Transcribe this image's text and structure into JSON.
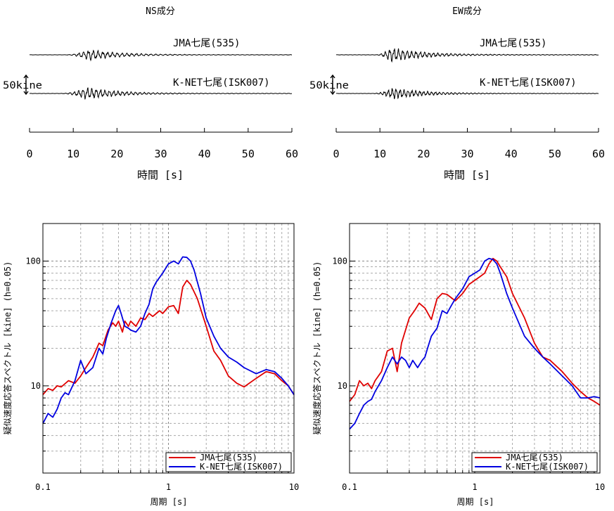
{
  "chart_data": [
    {
      "type": "line",
      "title": "NS成分",
      "xlabel": "時間 [s]",
      "xlim": [
        0,
        60
      ],
      "xticks": [
        0,
        10,
        20,
        30,
        40,
        50,
        60
      ],
      "scale_bar_label": "50kine",
      "traces": [
        {
          "name": "JMA七尾(535)",
          "color": "#000000",
          "onset": 8,
          "peak_time": 13.5,
          "peak_kine": 13,
          "period_s": 1.1
        },
        {
          "name": "K-NET七尾(ISK007)",
          "color": "#000000",
          "onset": 7,
          "peak_time": 13,
          "peak_kine": 15,
          "period_s": 1.0
        }
      ]
    },
    {
      "type": "line",
      "title": "EW成分",
      "xlabel": "時間 [s]",
      "xlim": [
        0,
        60
      ],
      "xticks": [
        0,
        10,
        20,
        30,
        40,
        50,
        60
      ],
      "scale_bar_label": "50kine",
      "traces": [
        {
          "name": "JMA七尾(535)",
          "color": "#000000",
          "onset": 9,
          "peak_time": 12.5,
          "peak_kine": 18,
          "period_s": 1.0
        },
        {
          "name": "K-NET七尾(ISK007)",
          "color": "#000000",
          "onset": 8,
          "peak_time": 13,
          "peak_kine": 14,
          "period_s": 0.9
        }
      ]
    },
    {
      "type": "line",
      "xlabel": "周期 [s]",
      "ylabel": "疑似速度応答スペクトル [kine] (h=0.05)",
      "xscale": "log",
      "yscale": "log",
      "xlim": [
        0.1,
        10
      ],
      "ylim": [
        2,
        200
      ],
      "xticks": [
        0.1,
        1,
        10
      ],
      "yticks": [
        10,
        100
      ],
      "legend": "bottom-right",
      "series": [
        {
          "name": "JMA七尾(535)",
          "color": "#e00000",
          "x": [
            0.1,
            0.11,
            0.12,
            0.13,
            0.14,
            0.16,
            0.18,
            0.2,
            0.22,
            0.25,
            0.28,
            0.3,
            0.33,
            0.36,
            0.38,
            0.4,
            0.43,
            0.45,
            0.48,
            0.5,
            0.55,
            0.6,
            0.65,
            0.7,
            0.75,
            0.8,
            0.85,
            0.9,
            1.0,
            1.1,
            1.2,
            1.3,
            1.4,
            1.5,
            1.7,
            2.0,
            2.3,
            2.6,
            3.0,
            3.5,
            4.0,
            5.0,
            6.0,
            7.0,
            8.0,
            9.0,
            10.0
          ],
          "y": [
            8.5,
            9.5,
            9.2,
            10,
            9.8,
            11,
            10.5,
            12,
            14,
            17,
            22,
            21,
            28,
            32,
            30,
            33,
            27,
            33,
            30,
            33,
            30,
            35,
            34,
            38,
            36,
            38,
            40,
            38,
            43,
            44,
            38,
            62,
            70,
            65,
            50,
            30,
            19,
            16,
            12,
            10.5,
            9.8,
            11.5,
            13,
            12.5,
            11,
            10,
            8.5
          ]
        },
        {
          "name": "K-NET七尾(ISK007)",
          "color": "#0000e0",
          "x": [
            0.1,
            0.11,
            0.12,
            0.13,
            0.14,
            0.15,
            0.16,
            0.18,
            0.2,
            0.22,
            0.25,
            0.28,
            0.3,
            0.32,
            0.35,
            0.38,
            0.4,
            0.42,
            0.45,
            0.48,
            0.5,
            0.55,
            0.6,
            0.65,
            0.7,
            0.75,
            0.8,
            0.9,
            1.0,
            1.1,
            1.2,
            1.3,
            1.4,
            1.5,
            1.6,
            1.8,
            2.0,
            2.3,
            2.6,
            3.0,
            3.5,
            4.0,
            5.0,
            6.0,
            7.0,
            8.0,
            9.0,
            10.0
          ],
          "y": [
            5,
            6,
            5.6,
            6.5,
            8,
            8.8,
            8.5,
            11,
            16,
            12.5,
            14,
            20,
            18,
            24,
            32,
            40,
            44,
            38,
            30,
            29,
            28,
            27,
            30,
            38,
            45,
            60,
            68,
            80,
            95,
            100,
            95,
            108,
            107,
            100,
            85,
            55,
            35,
            25,
            20,
            17,
            15.5,
            14,
            12.5,
            13.5,
            13,
            11.5,
            10,
            8.5
          ]
        }
      ]
    },
    {
      "type": "line",
      "xlabel": "周期 [s]",
      "ylabel": "疑似速度応答スペクトル [kine] (h=0.05)",
      "xscale": "log",
      "yscale": "log",
      "xlim": [
        0.1,
        10
      ],
      "ylim": [
        2,
        200
      ],
      "xticks": [
        0.1,
        1,
        10
      ],
      "yticks": [
        10,
        100
      ],
      "legend": "bottom-right",
      "series": [
        {
          "name": "JMA七尾(535)",
          "color": "#e00000",
          "x": [
            0.1,
            0.11,
            0.12,
            0.13,
            0.14,
            0.15,
            0.16,
            0.18,
            0.2,
            0.22,
            0.24,
            0.26,
            0.28,
            0.3,
            0.33,
            0.36,
            0.4,
            0.45,
            0.5,
            0.55,
            0.6,
            0.7,
            0.8,
            0.9,
            1.0,
            1.1,
            1.2,
            1.3,
            1.4,
            1.5,
            1.6,
            1.8,
            2.0,
            2.5,
            3.0,
            3.5,
            4.0,
            5.0,
            6.0,
            7.0,
            8.0,
            9.0,
            10.0
          ],
          "y": [
            7.5,
            8.5,
            11,
            10,
            10.5,
            9.5,
            11,
            13,
            19,
            20,
            13,
            22,
            28,
            35,
            40,
            46,
            42,
            34,
            50,
            55,
            54,
            48,
            55,
            65,
            70,
            75,
            80,
            95,
            105,
            100,
            90,
            75,
            55,
            35,
            22,
            17,
            16,
            13,
            10.5,
            9,
            8,
            7.5,
            7
          ]
        },
        {
          "name": "K-NET七尾(ISK007)",
          "color": "#0000e0",
          "x": [
            0.1,
            0.11,
            0.12,
            0.13,
            0.14,
            0.15,
            0.16,
            0.18,
            0.2,
            0.22,
            0.24,
            0.26,
            0.28,
            0.3,
            0.32,
            0.35,
            0.38,
            0.4,
            0.42,
            0.45,
            0.5,
            0.55,
            0.6,
            0.65,
            0.7,
            0.8,
            0.9,
            1.0,
            1.1,
            1.2,
            1.3,
            1.4,
            1.5,
            1.6,
            1.8,
            2.0,
            2.5,
            3.0,
            3.5,
            4.0,
            5.0,
            6.0,
            7.0,
            8.0,
            9.0,
            10.0
          ],
          "y": [
            4.5,
            5,
            6,
            7,
            7.5,
            7.8,
            9,
            11,
            14,
            17,
            15,
            17,
            16,
            14,
            16,
            14,
            16,
            17,
            20,
            25,
            29,
            40,
            38,
            44,
            50,
            60,
            75,
            80,
            85,
            100,
            105,
            103,
            95,
            80,
            55,
            42,
            25,
            20,
            17,
            15,
            12,
            10,
            8,
            8,
            8.2,
            8
          ]
        }
      ]
    }
  ]
}
